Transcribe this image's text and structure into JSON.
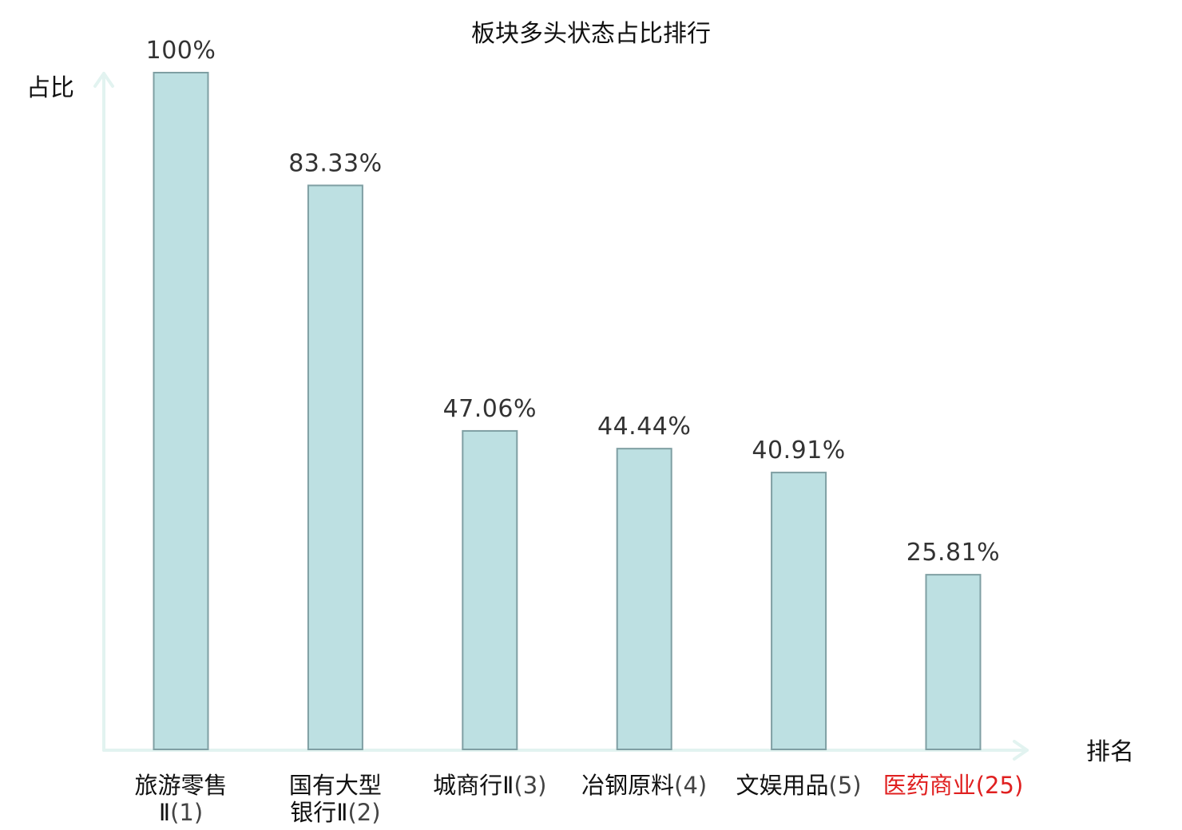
{
  "chart_data": {
    "type": "bar",
    "title": "板块多头状态占比排行",
    "ylabel": "占比",
    "xlabel": "排名",
    "ylim": [
      0,
      100
    ],
    "grid": false,
    "categories": [
      {
        "name_lines": [
          "旅游零售",
          "Ⅱ"
        ],
        "rank": "(1)",
        "highlight": false
      },
      {
        "name_lines": [
          "国有大型",
          "银行Ⅱ"
        ],
        "rank": "(2)",
        "highlight": false
      },
      {
        "name_lines": [
          "城商行Ⅱ"
        ],
        "rank": "(3)",
        "highlight": false
      },
      {
        "name_lines": [
          "冶钢原料"
        ],
        "rank": "(4)",
        "highlight": false
      },
      {
        "name_lines": [
          "文娱用品"
        ],
        "rank": "(5)",
        "highlight": false
      },
      {
        "name_lines": [
          "医药商业"
        ],
        "rank": "(25)",
        "highlight": true
      }
    ],
    "values": [
      100,
      83.33,
      47.06,
      44.44,
      40.91,
      25.81
    ],
    "value_labels": [
      "100%",
      "83.33%",
      "47.06%",
      "44.44%",
      "40.91%",
      "25.81%"
    ],
    "colors": {
      "bar_fill": "#bde0e2",
      "bar_stroke": "#7f9fa3",
      "axis": "#e2f3f0",
      "label": "#111111",
      "rank": "#444444",
      "highlight": "#e02020"
    }
  }
}
